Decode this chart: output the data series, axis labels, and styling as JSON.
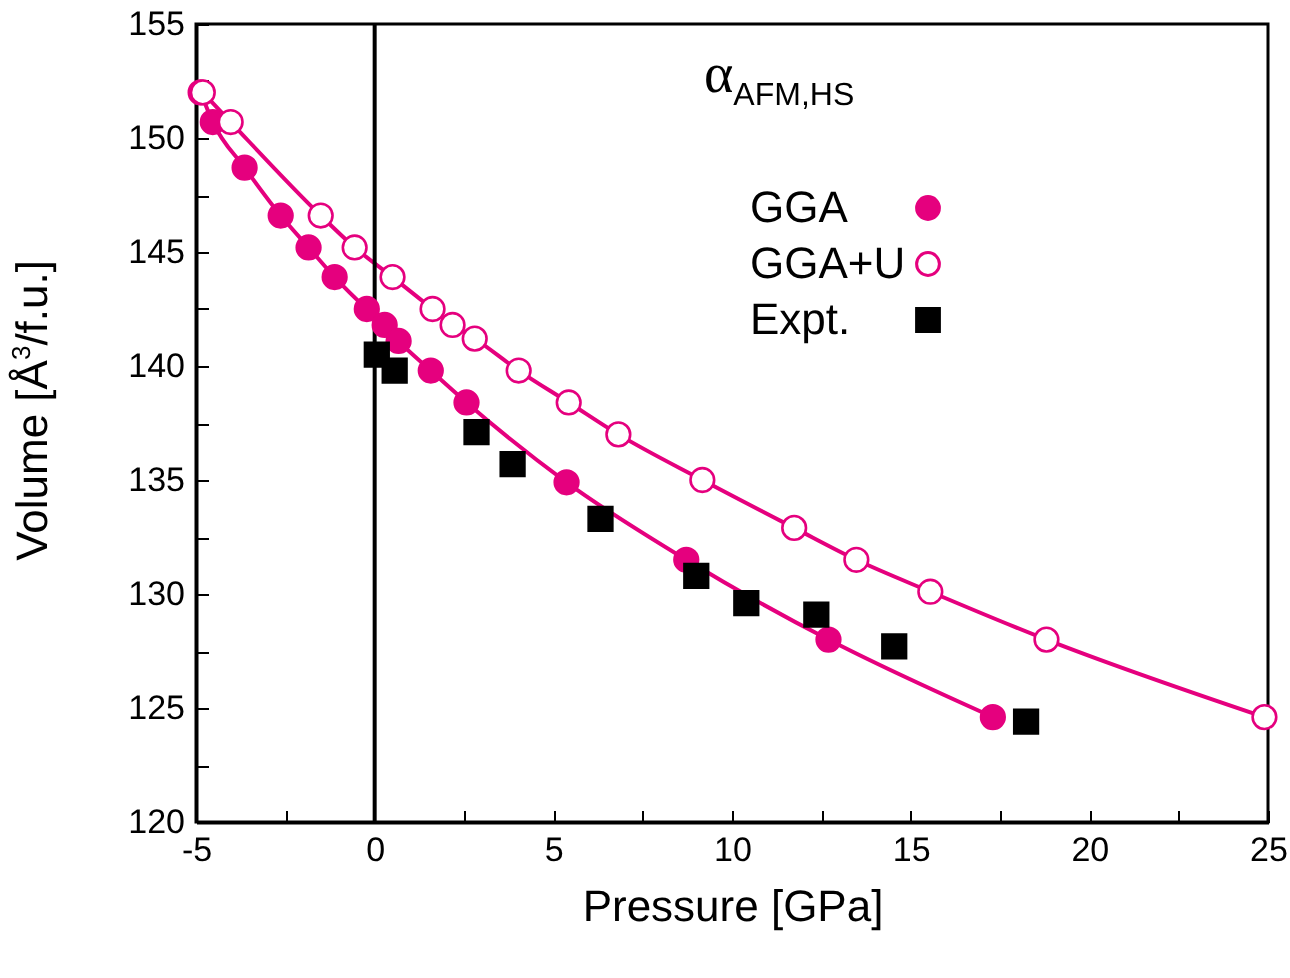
{
  "chart_data": {
    "type": "line",
    "xlabel": "Pressure [GPa]",
    "ylabel": "Volume [Å$^{3}$/f.u.]",
    "legend_title": "α$_{AFM,HS}$",
    "xlim": [
      -5,
      25
    ],
    "xticks": [
      -5,
      {
        "value": -2.5,
        "label": null
      },
      0,
      {
        "value": 2.5,
        "label": null
      },
      5,
      {
        "value": 7.5,
        "label": null
      },
      10,
      {
        "value": 12.5,
        "label": null
      },
      15,
      {
        "value": 17.5,
        "label": null
      },
      20,
      {
        "value": 22.5,
        "label": null
      },
      25
    ],
    "ylim": [
      120,
      155
    ],
    "yticks": [
      120,
      {
        "value": 122.5,
        "label": null
      },
      125,
      {
        "value": 127.5,
        "label": null
      },
      130,
      {
        "value": 132.5,
        "label": null
      },
      135,
      {
        "value": 137.5,
        "label": null
      },
      140,
      {
        "value": 142.5,
        "label": null
      },
      145,
      {
        "value": 147.5,
        "label": null
      },
      150,
      {
        "value": 152.5,
        "label": null
      },
      155
    ],
    "grid": false,
    "legend": "top right",
    "ref_lines": [
      {
        "axis": "x",
        "value": 0,
        "color": "#000000"
      }
    ],
    "series": [
      {
        "name": "GGA",
        "type": "line",
        "color": "#e5007e",
        "marker": "circle",
        "x": [
          -4.87,
          -4.53,
          -3.64,
          -2.63,
          -1.85,
          -1.12,
          -0.22,
          0.28,
          0.67,
          1.57,
          2.57,
          5.37,
          8.72,
          12.7,
          17.3
        ],
        "values": [
          152.0,
          150.7,
          148.7,
          146.6,
          145.2,
          143.9,
          142.5,
          141.8,
          141.1,
          139.8,
          138.4,
          134.9,
          131.5,
          128.0,
          124.6
        ]
      },
      {
        "name": "GGA+U",
        "type": "line",
        "color": "#e5007e",
        "marker": "circle-open",
        "x": [
          -4.81,
          -4.03,
          -1.51,
          -0.56,
          0.5,
          1.62,
          2.18,
          2.8,
          4.03,
          5.43,
          6.82,
          9.17,
          11.74,
          13.48,
          15.55,
          18.8,
          24.9
        ],
        "values": [
          152.0,
          150.7,
          146.6,
          145.2,
          143.9,
          142.5,
          141.8,
          141.2,
          139.8,
          138.4,
          137.0,
          135.0,
          132.9,
          131.5,
          130.1,
          128.0,
          124.6
        ]
      },
      {
        "name": "Expt.",
        "type": "scatter",
        "color": "#000000",
        "marker": "square",
        "x": [
          0.06,
          0.56,
          2.85,
          3.86,
          6.32,
          9.0,
          10.4,
          12.36,
          14.54,
          18.23
        ],
        "values": [
          140.5,
          139.8,
          137.1,
          135.7,
          133.3,
          130.8,
          129.6,
          129.1,
          127.7,
          124.4
        ]
      }
    ]
  }
}
